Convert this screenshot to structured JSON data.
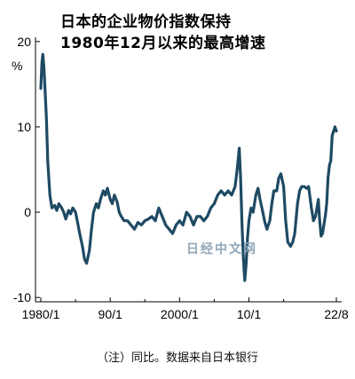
{
  "chart_data": {
    "type": "line",
    "title_lines": [
      "日本的企业物价指数保持",
      "1980年12月以来的最高增速"
    ],
    "unit": "%",
    "note": "（注）同比。数据来自日本银行",
    "watermark": "日经中文网",
    "x_range": [
      1980.0,
      2022.6
    ],
    "ylim": [
      -10.5,
      20.5
    ],
    "y_ticks": [
      20,
      10,
      0,
      -10
    ],
    "x_ticks": [
      {
        "value": 1980.0,
        "label": "1980/1"
      },
      {
        "value": 1990.0,
        "label": "90/1"
      },
      {
        "value": 2000.0,
        "label": "2000/1"
      },
      {
        "value": 2010.0,
        "label": "10/1"
      },
      {
        "value": 2022.6,
        "label": "22/8"
      }
    ],
    "series": [
      {
        "color": "#1e4a63",
        "x": [
          1980.0,
          1980.15,
          1980.3,
          1980.45,
          1980.6,
          1980.8,
          1981.0,
          1981.3,
          1981.6,
          1982.0,
          1982.3,
          1982.6,
          1983.0,
          1983.3,
          1983.6,
          1984.0,
          1984.3,
          1984.6,
          1985.0,
          1985.3,
          1985.6,
          1986.0,
          1986.3,
          1986.6,
          1987.0,
          1987.3,
          1987.6,
          1988.0,
          1988.3,
          1988.6,
          1989.0,
          1989.3,
          1989.6,
          1990.0,
          1990.3,
          1990.6,
          1991.0,
          1991.3,
          1991.6,
          1992.0,
          1992.5,
          1993.0,
          1993.5,
          1994.0,
          1994.5,
          1995.0,
          1995.5,
          1996.0,
          1996.5,
          1997.0,
          1997.5,
          1998.0,
          1998.5,
          1999.0,
          1999.5,
          2000.0,
          2000.5,
          2001.0,
          2001.5,
          2002.0,
          2002.5,
          2003.0,
          2003.5,
          2004.0,
          2004.5,
          2005.0,
          2005.5,
          2006.0,
          2006.5,
          2007.0,
          2007.5,
          2008.0,
          2008.3,
          2008.6,
          2008.8,
          2009.0,
          2009.2,
          2009.4,
          2009.6,
          2009.8,
          2010.0,
          2010.3,
          2010.6,
          2011.0,
          2011.3,
          2011.6,
          2012.0,
          2012.3,
          2012.6,
          2013.0,
          2013.3,
          2013.6,
          2014.0,
          2014.3,
          2014.6,
          2015.0,
          2015.3,
          2015.6,
          2016.0,
          2016.3,
          2016.6,
          2017.0,
          2017.3,
          2017.6,
          2018.0,
          2018.3,
          2018.6,
          2019.0,
          2019.3,
          2019.6,
          2020.0,
          2020.2,
          2020.4,
          2020.6,
          2020.8,
          2021.0,
          2021.2,
          2021.4,
          2021.6,
          2021.8,
          2022.0,
          2022.2,
          2022.4,
          2022.6
        ],
        "y": [
          14.5,
          17.5,
          18.5,
          17.0,
          14.5,
          11.0,
          6.0,
          2.0,
          0.5,
          0.8,
          0.2,
          1.0,
          0.5,
          0.0,
          -0.8,
          0.2,
          -0.2,
          0.5,
          0.0,
          -1.2,
          -2.5,
          -4.0,
          -5.5,
          -6.0,
          -4.5,
          -2.0,
          0.0,
          1.0,
          0.5,
          1.5,
          2.5,
          2.0,
          2.8,
          1.5,
          1.0,
          2.0,
          1.2,
          0.0,
          -0.5,
          -1.0,
          -1.0,
          -1.5,
          -2.0,
          -1.2,
          -1.5,
          -1.0,
          -0.8,
          -0.5,
          -1.0,
          0.5,
          -0.5,
          -1.5,
          -2.0,
          -2.5,
          -1.5,
          -1.0,
          -1.5,
          0.0,
          -0.5,
          -1.5,
          -0.5,
          -0.5,
          -1.0,
          -0.5,
          0.5,
          1.0,
          2.0,
          2.5,
          2.0,
          2.5,
          2.0,
          3.0,
          5.0,
          7.5,
          4.0,
          -1.5,
          -5.5,
          -8.0,
          -6.0,
          -3.0,
          -1.0,
          0.5,
          0.0,
          2.0,
          2.8,
          1.5,
          0.0,
          -1.2,
          -2.0,
          -1.0,
          1.0,
          2.5,
          2.5,
          4.0,
          4.5,
          3.0,
          -1.0,
          -3.5,
          -4.0,
          -3.5,
          -2.5,
          1.0,
          2.5,
          3.0,
          3.0,
          2.8,
          3.0,
          0.5,
          -1.0,
          -0.5,
          1.5,
          -1.0,
          -2.8,
          -2.5,
          -1.5,
          -0.5,
          1.0,
          4.0,
          5.5,
          6.0,
          9.0,
          9.5,
          10.0,
          9.5
        ]
      }
    ]
  }
}
